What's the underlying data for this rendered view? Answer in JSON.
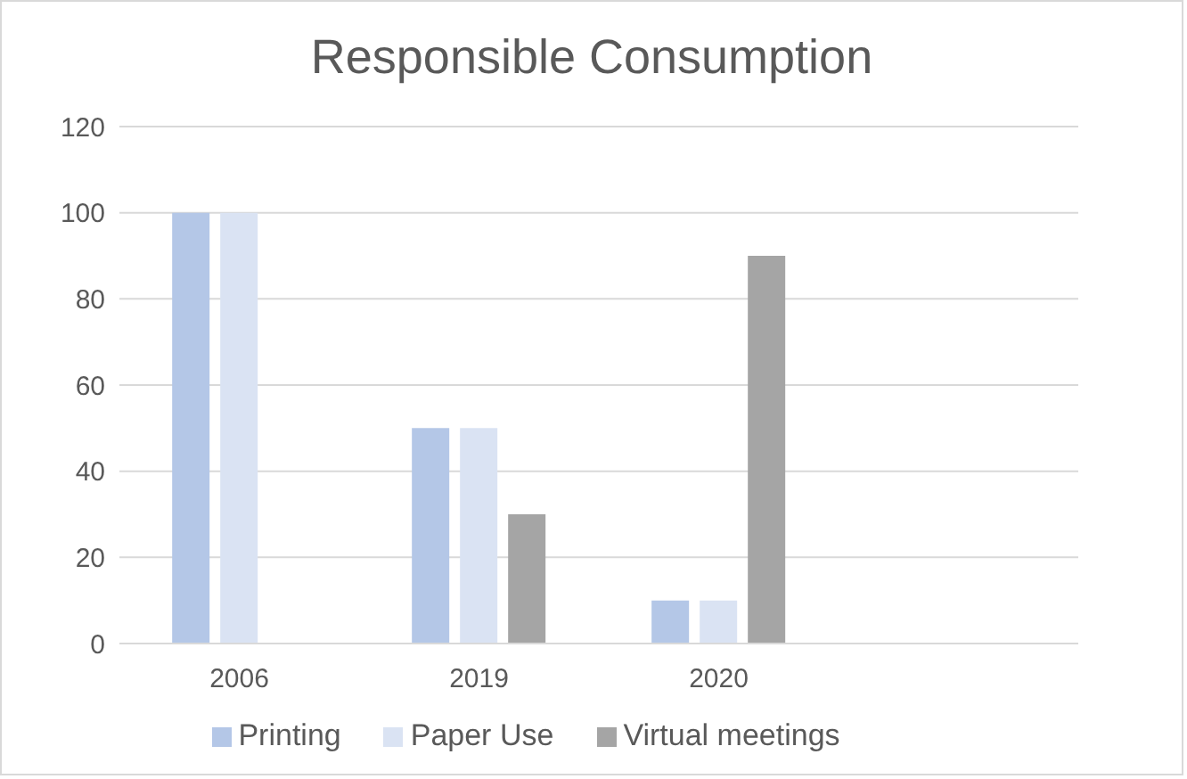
{
  "chart_data": {
    "type": "bar",
    "title": "Responsible Consumption",
    "categories": [
      "2006",
      "2019",
      "2020",
      null
    ],
    "series": [
      {
        "name": "Printing",
        "color": "#b4c7e7",
        "values": [
          100,
          50,
          10,
          null
        ]
      },
      {
        "name": "Paper Use",
        "color": "#dae3f3",
        "values": [
          100,
          50,
          10,
          null
        ]
      },
      {
        "name": "Virtual meetings",
        "color": "#a5a5a5",
        "values": [
          null,
          30,
          90,
          null
        ]
      }
    ],
    "ylim": [
      0,
      120
    ],
    "yticks": [
      0,
      20,
      40,
      60,
      80,
      100,
      120
    ],
    "grid": "y",
    "legend": "bottom"
  }
}
